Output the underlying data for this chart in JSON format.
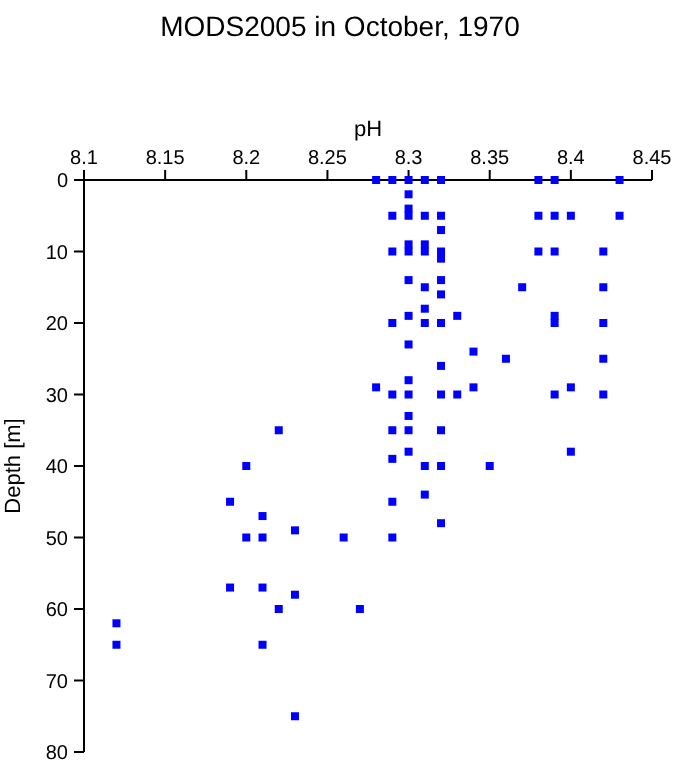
{
  "chart_data": {
    "type": "scatter",
    "title": "MODS2005 in October, 1970",
    "xlabel": "pH",
    "ylabel": "Depth [m]",
    "xlim": [
      8.1,
      8.45
    ],
    "xticks": [
      8.1,
      8.15,
      8.2,
      8.25,
      8.3,
      8.35,
      8.4,
      8.45
    ],
    "ylim": [
      80,
      0
    ],
    "yticks": [
      0,
      10,
      20,
      30,
      40,
      50,
      60,
      70,
      80
    ],
    "marker": "square",
    "grid": false,
    "series": [
      {
        "color": "#0000ff",
        "x": [
          8.28,
          8.29,
          8.3,
          8.31,
          8.32,
          8.38,
          8.39,
          8.43,
          8.3,
          8.3,
          8.29,
          8.3,
          8.31,
          8.32,
          8.38,
          8.39,
          8.4,
          8.43,
          8.32,
          8.3,
          8.31,
          8.29,
          8.3,
          8.31,
          8.32,
          8.38,
          8.39,
          8.42,
          8.32,
          8.3,
          8.32,
          8.31,
          8.37,
          8.42,
          8.32,
          8.31,
          8.3,
          8.33,
          8.39,
          8.29,
          8.31,
          8.32,
          8.39,
          8.42,
          8.3,
          8.34,
          8.36,
          8.42,
          8.32,
          8.3,
          8.28,
          8.34,
          8.4,
          8.29,
          8.3,
          8.32,
          8.33,
          8.39,
          8.42,
          8.3,
          8.29,
          8.3,
          8.32,
          8.22,
          8.3,
          8.4,
          8.29,
          8.2,
          8.31,
          8.32,
          8.35,
          8.31,
          8.19,
          8.29,
          8.21,
          8.32,
          8.23,
          8.2,
          8.21,
          8.26,
          8.29,
          8.19,
          8.21,
          8.23,
          8.22,
          8.27,
          8.12,
          8.12,
          8.21,
          8.23
        ],
        "values": [
          0,
          0,
          0,
          0,
          0,
          0,
          0,
          0,
          2,
          4,
          5,
          5,
          5,
          5,
          5,
          5,
          5,
          5,
          7,
          9,
          9,
          10,
          10,
          10,
          10,
          10,
          10,
          10,
          11,
          14,
          14,
          15,
          15,
          15,
          16,
          18,
          19,
          19,
          19,
          20,
          20,
          20,
          20,
          20,
          23,
          24,
          25,
          25,
          26,
          28,
          29,
          29,
          29,
          30,
          30,
          30,
          30,
          30,
          30,
          33,
          35,
          35,
          35,
          35,
          38,
          38,
          39,
          40,
          40,
          40,
          40,
          44,
          45,
          45,
          47,
          48,
          49,
          50,
          50,
          50,
          50,
          57,
          57,
          58,
          60,
          60,
          62,
          65,
          65,
          75
        ]
      }
    ]
  }
}
